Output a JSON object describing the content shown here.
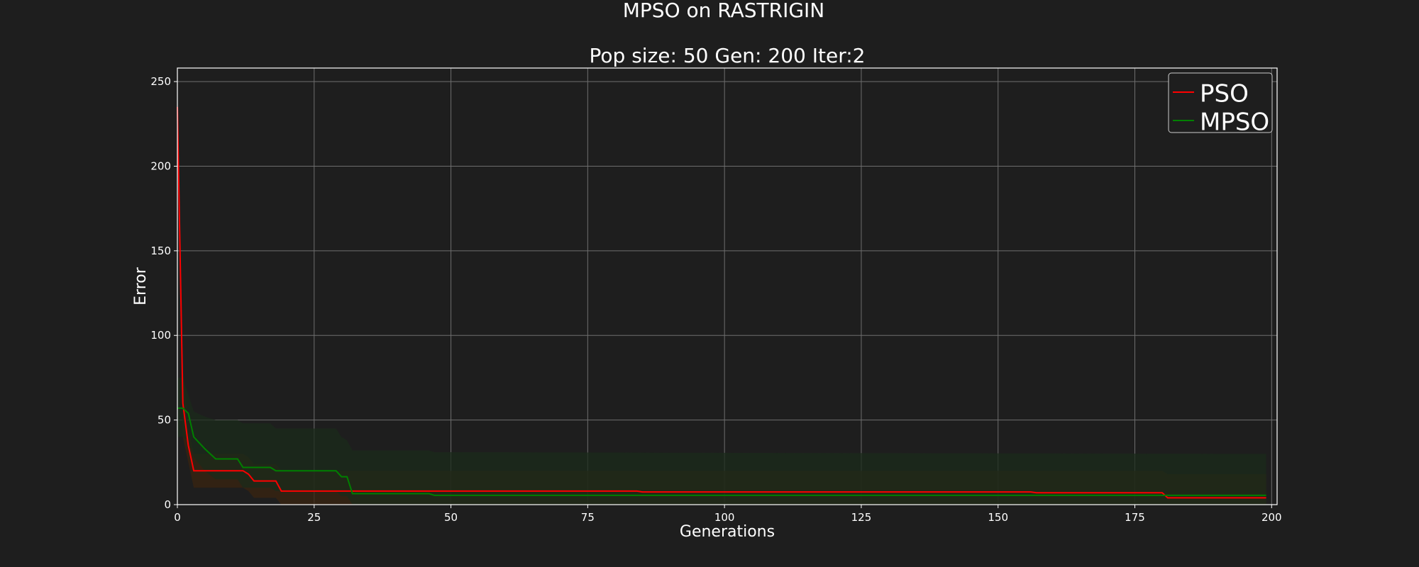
{
  "chart_data": {
    "type": "line",
    "title": "MPSO on RASTRIGIN",
    "subtitle": "Pop size: 50  Gen: 200  Iter:2",
    "xlabel": "Generations",
    "ylabel": "Error",
    "xlim": [
      0,
      200
    ],
    "ylim": [
      0,
      258
    ],
    "xticks": [
      0,
      25,
      50,
      75,
      100,
      125,
      150,
      175,
      200
    ],
    "yticks": [
      0,
      50,
      100,
      150,
      200,
      250
    ],
    "grid": true,
    "legend_position": "top-right",
    "series": [
      {
        "name": "PSO",
        "color": "#ff0000",
        "band_color": "#3a2410",
        "x": [
          0,
          1,
          2,
          3,
          12,
          13,
          14,
          18,
          19,
          84,
          85,
          156,
          157,
          180,
          181,
          199
        ],
        "y": [
          235,
          60,
          35,
          20,
          20,
          18,
          14,
          14,
          8,
          8,
          7.5,
          7.5,
          7,
          7,
          4,
          4
        ],
        "band_upper": [
          240,
          80,
          45,
          30,
          30,
          28,
          24,
          24,
          20,
          20,
          20,
          20,
          20,
          20,
          18,
          18
        ],
        "band_lower": [
          230,
          40,
          25,
          10,
          10,
          8,
          4,
          4,
          0,
          0,
          0,
          0,
          0,
          0,
          0,
          0
        ]
      },
      {
        "name": "MPSO",
        "color": "#008000",
        "band_color": "#1b2b1b",
        "x": [
          0,
          1,
          2,
          3,
          5,
          7,
          11,
          12,
          17,
          18,
          29,
          30,
          31,
          32,
          46,
          47,
          199
        ],
        "y": [
          57,
          57,
          54,
          40,
          33,
          27,
          27,
          22,
          22,
          20,
          20,
          16.5,
          16.5,
          6.5,
          6.5,
          5.5,
          5.5
        ],
        "band_upper": [
          75,
          75,
          65,
          55,
          52,
          50,
          50,
          48,
          48,
          45,
          45,
          40,
          38,
          32,
          32,
          31,
          30
        ],
        "band_lower": [
          40,
          40,
          38,
          28,
          20,
          15,
          15,
          10,
          10,
          8,
          8,
          5,
          5,
          0,
          0,
          0,
          0
        ]
      }
    ]
  }
}
